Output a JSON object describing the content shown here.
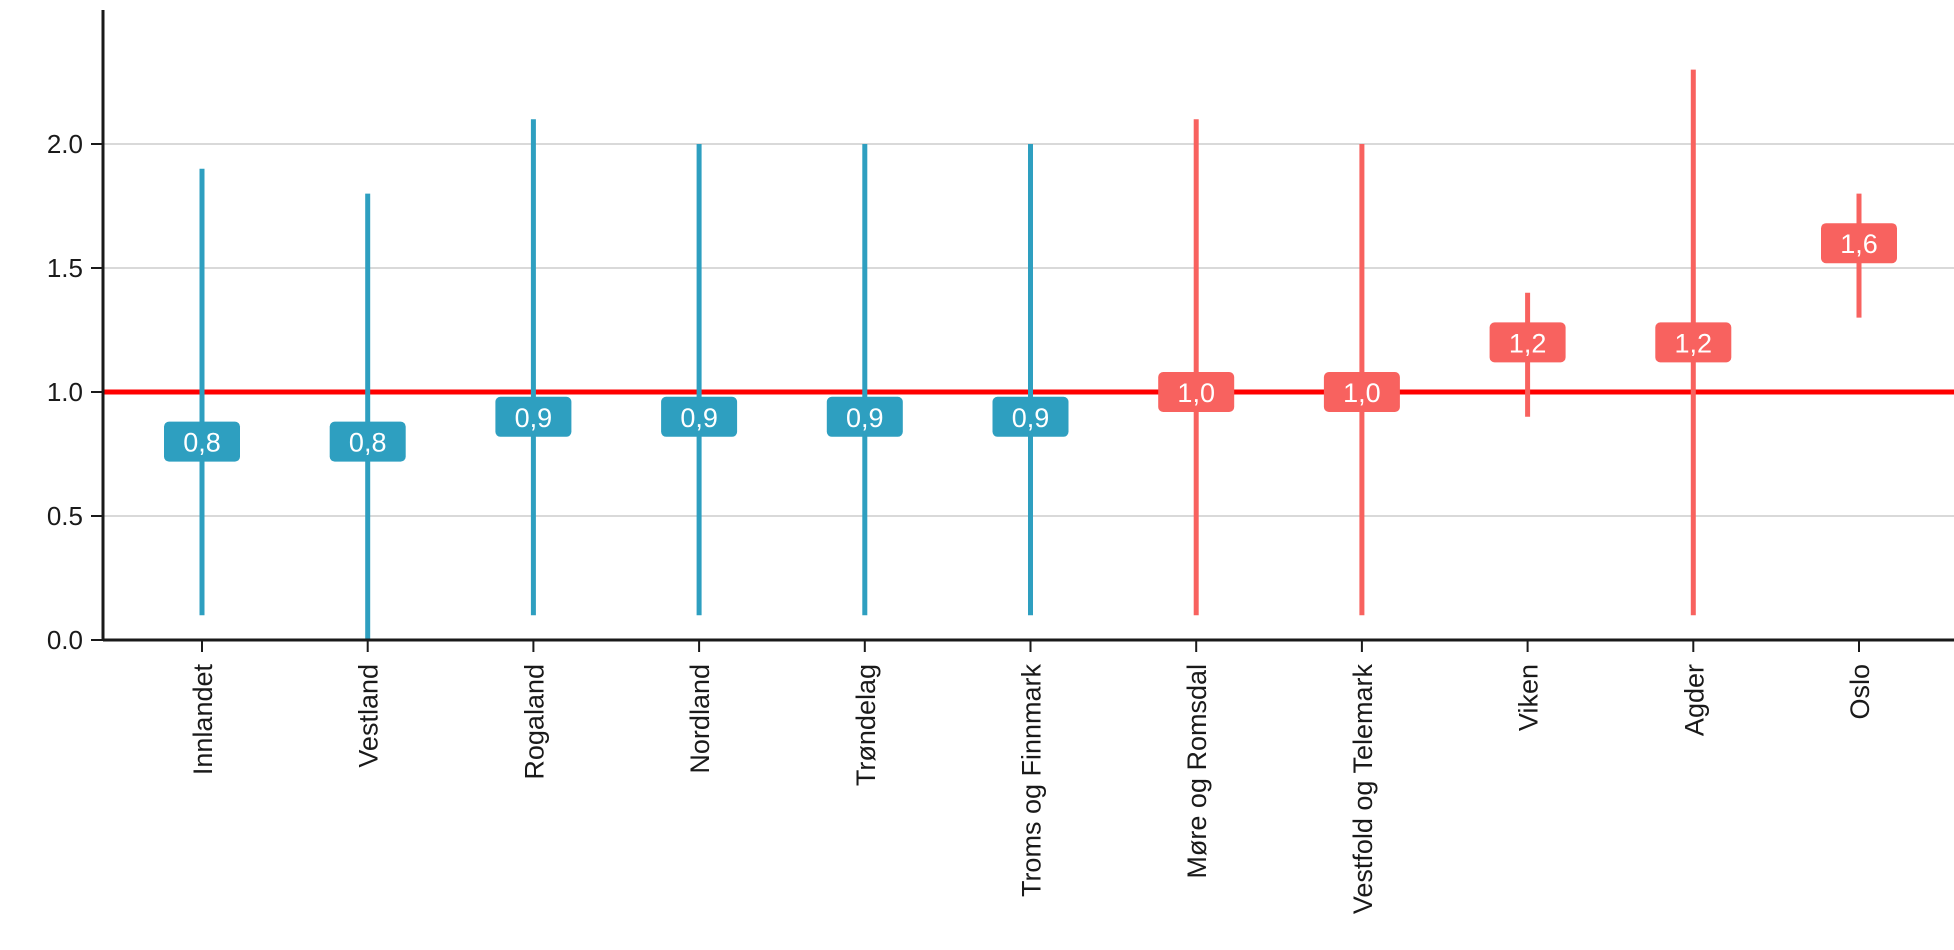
{
  "chart_data": {
    "type": "errorbar",
    "title": "",
    "xlabel": "",
    "ylabel": "",
    "ylim": [
      0,
      2.5
    ],
    "yticks": [
      "0.0",
      "0.5",
      "1.0",
      "1.5",
      "2.0"
    ],
    "grid": true,
    "reference_line": 1.0,
    "colors": {
      "below": "#2E9FC0",
      "above": "#F8625F",
      "reference": "#FF0000",
      "grid": "#D9D9D9"
    },
    "categories": [
      "Innlandet",
      "Vestland",
      "Rogaland",
      "Nordland",
      "Trøndelag",
      "Troms og Finnmark",
      "Møre og Romsdal",
      "Vestfold og Telemark",
      "Viken",
      "Agder",
      "Oslo"
    ],
    "series": [
      {
        "estimate": [
          0.8,
          0.8,
          0.9,
          0.9,
          0.9,
          0.9,
          1.0,
          1.0,
          1.2,
          1.2,
          1.6
        ],
        "lower": [
          0.1,
          0.0,
          0.1,
          0.1,
          0.1,
          0.1,
          0.1,
          0.1,
          0.9,
          0.1,
          1.3
        ],
        "upper": [
          1.9,
          1.8,
          2.1,
          2.0,
          2.0,
          2.0,
          2.1,
          2.0,
          1.4,
          2.3,
          1.8
        ],
        "labels": [
          "0,8",
          "0,8",
          "0,9",
          "0,9",
          "0,9",
          "0,9",
          "1,0",
          "1,0",
          "1,2",
          "1,2",
          "1,6"
        ],
        "group": [
          "below",
          "below",
          "below",
          "below",
          "below",
          "below",
          "above",
          "above",
          "above",
          "above",
          "above"
        ]
      }
    ]
  }
}
